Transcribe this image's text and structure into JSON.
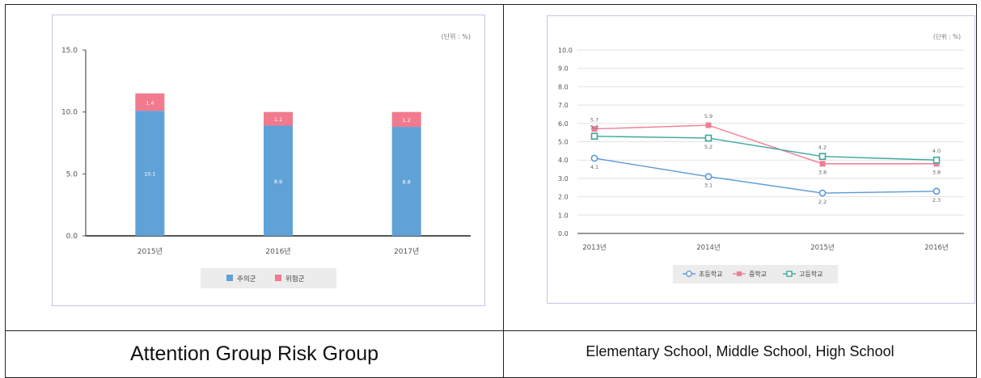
{
  "captions": {
    "left": "Attention Group  Risk Group",
    "right": "Elementary School, Middle School, High School"
  },
  "chart_data": [
    {
      "type": "bar",
      "stacked": true,
      "unit_label": "(단위 : %)",
      "categories": [
        "2015년",
        "2016년",
        "2017년"
      ],
      "series": [
        {
          "name": "주의군",
          "color": "#5fa2d8",
          "values": [
            10.1,
            8.9,
            8.8
          ]
        },
        {
          "name": "위험군",
          "color": "#f17a8c",
          "values": [
            1.4,
            1.1,
            1.2
          ]
        }
      ],
      "ylim": [
        0,
        15
      ],
      "yticks": [
        "0.0",
        "5.0",
        "10.0",
        "15.0"
      ],
      "grid": false,
      "legend": "bottom"
    },
    {
      "type": "line",
      "unit_label": "(단위 : %)",
      "x": [
        "2013년",
        "2014년",
        "2015년",
        "2016년"
      ],
      "series": [
        {
          "name": "초등학교",
          "color": "#5b9ad6",
          "marker": "circle",
          "values": [
            4.1,
            3.1,
            2.2,
            2.3
          ]
        },
        {
          "name": "중학교",
          "color": "#ef7f95",
          "marker": "square",
          "values": [
            5.7,
            5.9,
            3.8,
            3.8
          ]
        },
        {
          "name": "고등학교",
          "color": "#3aa89a",
          "marker": "square-open",
          "values": [
            5.3,
            5.2,
            4.2,
            4.0
          ]
        }
      ],
      "ylim": [
        0,
        10
      ],
      "yticks": [
        "0.0",
        "1.0",
        "2.0",
        "3.0",
        "4.0",
        "5.0",
        "6.0",
        "7.0",
        "8.0",
        "9.0",
        "10.0"
      ],
      "grid": true,
      "legend": "bottom"
    }
  ]
}
